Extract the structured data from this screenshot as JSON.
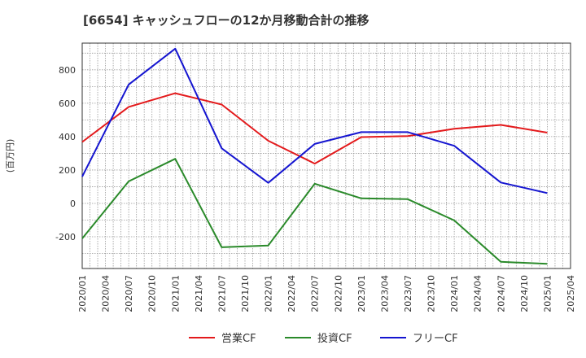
{
  "chart_data": {
    "type": "line",
    "title": "[6654]  キャッシュフローの12か月移動合計の推移",
    "ylabel": "(百万円)",
    "xlabel": "",
    "ylim": [
      -390,
      960
    ],
    "yticks": [
      -200,
      0,
      200,
      400,
      600,
      800
    ],
    "ytick_labels": [
      "-200",
      "0",
      "200",
      "400",
      "600",
      "800"
    ],
    "xticks": [
      "2020/01",
      "2020/04",
      "2020/07",
      "2020/10",
      "2021/01",
      "2021/04",
      "2021/07",
      "2021/10",
      "2022/01",
      "2022/04",
      "2022/07",
      "2022/10",
      "2023/01",
      "2023/04",
      "2023/07",
      "2023/10",
      "2024/01",
      "2024/04",
      "2024/07",
      "2024/10",
      "2025/01",
      "2025/04"
    ],
    "grid": true,
    "legend_position": "bottom",
    "series": [
      {
        "name": "営業CF",
        "color": "#e31a1c",
        "x": [
          "2020/01",
          "2020/07",
          "2021/01",
          "2021/07",
          "2022/01",
          "2022/07",
          "2023/01",
          "2023/07",
          "2024/01",
          "2024/07",
          "2025/01"
        ],
        "values": [
          368,
          578,
          660,
          592,
          375,
          238,
          397,
          403,
          447,
          470,
          424
        ]
      },
      {
        "name": "投資CF",
        "color": "#2a8a2a",
        "x": [
          "2020/01",
          "2020/07",
          "2021/01",
          "2021/07",
          "2022/01",
          "2022/07",
          "2023/01",
          "2023/07",
          "2024/01",
          "2024/07",
          "2025/01"
        ],
        "values": [
          -210,
          132,
          267,
          -263,
          -252,
          118,
          30,
          25,
          -102,
          -350,
          -362
        ]
      },
      {
        "name": "フリーCF",
        "color": "#1515d0",
        "x": [
          "2020/01",
          "2020/07",
          "2021/01",
          "2021/07",
          "2022/01",
          "2022/07",
          "2023/01",
          "2023/07",
          "2024/01",
          "2024/07",
          "2025/01"
        ],
        "values": [
          160,
          712,
          927,
          330,
          123,
          356,
          427,
          427,
          345,
          125,
          62
        ]
      }
    ]
  }
}
